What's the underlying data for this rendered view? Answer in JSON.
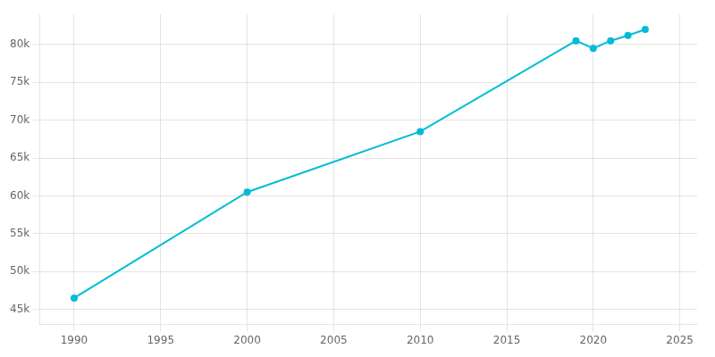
{
  "chart_data": {
    "type": "line",
    "x": [
      1990,
      2000,
      2010,
      2019,
      2020,
      2021,
      2022,
      2023
    ],
    "values": [
      46500,
      60500,
      68500,
      80500,
      79500,
      80500,
      81200,
      82000
    ],
    "color": "#00BCD4",
    "marker": "circle",
    "xlim": [
      1988,
      2026
    ],
    "ylim": [
      43000,
      84000
    ],
    "xticks": [
      1990,
      1995,
      2000,
      2005,
      2010,
      2015,
      2020,
      2025
    ],
    "yticks": [
      {
        "value": 45000,
        "label": "45k"
      },
      {
        "value": 50000,
        "label": "50k"
      },
      {
        "value": 55000,
        "label": "55k"
      },
      {
        "value": 60000,
        "label": "60k"
      },
      {
        "value": 65000,
        "label": "65k"
      },
      {
        "value": 70000,
        "label": "70k"
      },
      {
        "value": 75000,
        "label": "75k"
      },
      {
        "value": 80000,
        "label": "80k"
      }
    ],
    "grid": true
  }
}
